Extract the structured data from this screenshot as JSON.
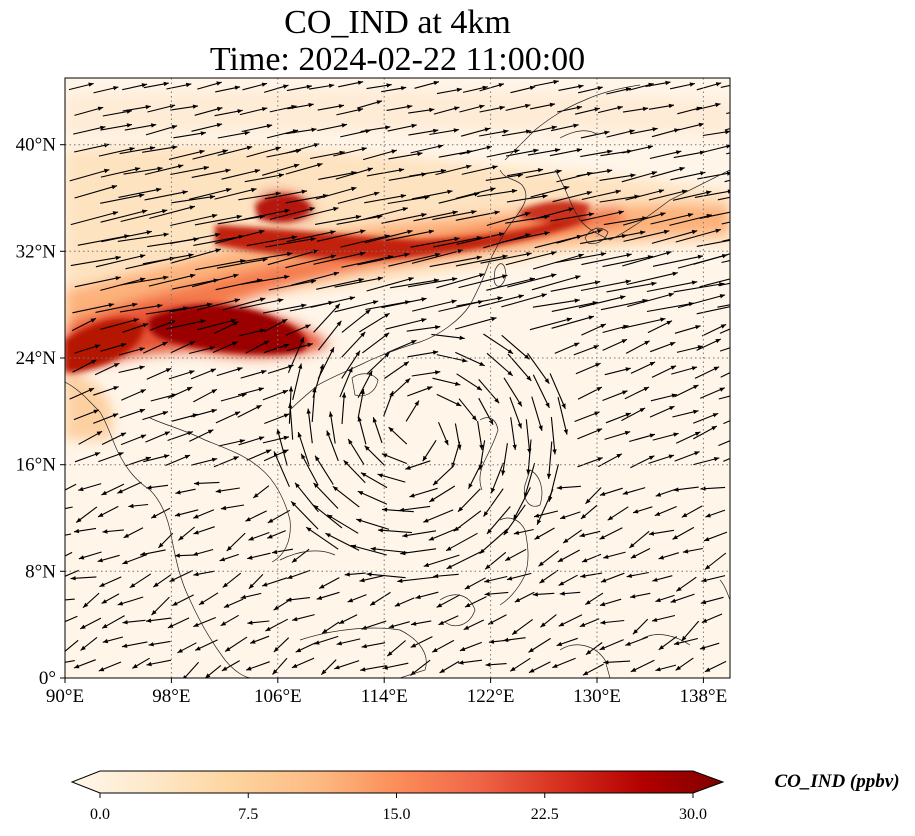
{
  "title": {
    "line1": "CO_IND at 4km",
    "line2": "Time: 2024-02-22 11:00:00"
  },
  "map": {
    "lon_range": [
      90,
      140
    ],
    "lat_range": [
      0,
      45
    ],
    "lon_ticks": [
      "90°E",
      "98°E",
      "106°E",
      "114°E",
      "122°E",
      "130°E",
      "138°E"
    ],
    "lat_ticks": [
      "0°",
      "8°N",
      "16°N",
      "24°N",
      "32°N",
      "40°N"
    ],
    "gridlines": "dotted",
    "overlay": "wind vectors (quivers)"
  },
  "colorbar": {
    "label": "CO_IND (ppbv)",
    "ticks": [
      "0.0",
      "7.5",
      "15.0",
      "22.5",
      "30.0"
    ],
    "range": [
      0,
      30
    ],
    "extend": "both",
    "cmap": "OrRd",
    "colors": [
      "#fff7ec",
      "#fee8c8",
      "#fdd49e",
      "#fdbb84",
      "#fc8d59",
      "#ef6548",
      "#d7301f",
      "#b30000",
      "#7f0000"
    ]
  },
  "colors": {
    "background": "#fff5e8",
    "coast": "#222222",
    "grid": "#777777",
    "arrow": "#000000"
  }
}
